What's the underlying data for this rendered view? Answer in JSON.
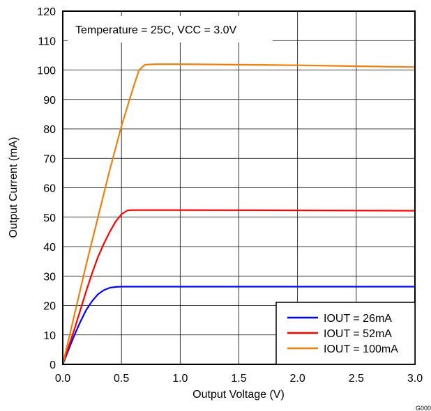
{
  "chart_data": {
    "type": "line",
    "title": "",
    "annotation": "Temperature = 25C, VCC = 3.0V",
    "xlabel": "Output Voltage (V)",
    "ylabel": "Output Current (mA)",
    "xlim": [
      0,
      3.0
    ],
    "ylim": [
      0,
      120
    ],
    "x_ticks": [
      0,
      0.5,
      1.0,
      1.5,
      2.0,
      2.5,
      3.0
    ],
    "x_tick_labels": [
      "0.0",
      "0.5",
      "1.0",
      "1.5",
      "2.0",
      "2.5",
      "3.0"
    ],
    "y_ticks": [
      0,
      10,
      20,
      30,
      40,
      50,
      60,
      70,
      80,
      90,
      100,
      110,
      120
    ],
    "y_tick_labels": [
      "0",
      "10",
      "20",
      "30",
      "40",
      "50",
      "60",
      "70",
      "80",
      "90",
      "100",
      "110",
      "120"
    ],
    "grid": true,
    "legend_position": "bottom-right",
    "figure_code": "G000",
    "series": [
      {
        "name": "IOUT = 26mA",
        "color": "#0000ff",
        "x": [
          0,
          0.05,
          0.1,
          0.15,
          0.2,
          0.25,
          0.3,
          0.35,
          0.4,
          0.45,
          0.5,
          0.6,
          1.0,
          2.0,
          3.0
        ],
        "y": [
          0,
          5,
          10,
          14.5,
          18.5,
          21.5,
          23.8,
          25.2,
          26.0,
          26.3,
          26.4,
          26.4,
          26.4,
          26.4,
          26.4
        ]
      },
      {
        "name": "IOUT = 52mA",
        "color": "#ff0000",
        "x": [
          0,
          0.05,
          0.1,
          0.15,
          0.2,
          0.25,
          0.3,
          0.35,
          0.4,
          0.45,
          0.5,
          0.55,
          0.6,
          1.0,
          2.0,
          3.0
        ],
        "y": [
          0,
          6,
          12,
          18.5,
          25,
          31,
          36.5,
          41,
          45,
          48.5,
          51,
          52.3,
          52.4,
          52.4,
          52.3,
          52.2
        ]
      },
      {
        "name": "IOUT = 100mA",
        "color": "#ee8010",
        "x": [
          0,
          0.1,
          0.2,
          0.3,
          0.4,
          0.5,
          0.6,
          0.65,
          0.7,
          0.8,
          1.0,
          1.5,
          2.0,
          2.5,
          3.0
        ],
        "y": [
          0,
          17,
          34,
          50,
          66,
          81,
          94,
          100,
          101.8,
          102,
          102,
          101.8,
          101.6,
          101.3,
          101
        ]
      }
    ]
  }
}
